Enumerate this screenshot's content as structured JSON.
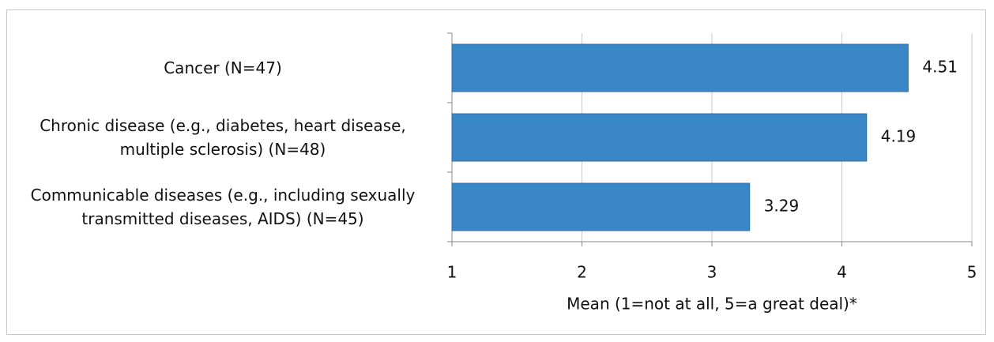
{
  "chart_data": {
    "type": "bar",
    "orientation": "horizontal",
    "categories": [
      "Cancer (N=47)",
      "Chronic disease (e.g., diabetes, heart disease, multiple sclerosis) (N=48)",
      "Communicable diseases (e.g., including sexually transmitted diseases, AIDS) (N=45)"
    ],
    "values": [
      4.51,
      4.19,
      3.29
    ],
    "color": "#3a87c8",
    "xlim": [
      1,
      5
    ],
    "xticks": [
      1,
      2,
      3,
      4,
      5
    ],
    "grid": true,
    "xlabel": "Mean (1=not at all, 5=a great deal)*"
  }
}
